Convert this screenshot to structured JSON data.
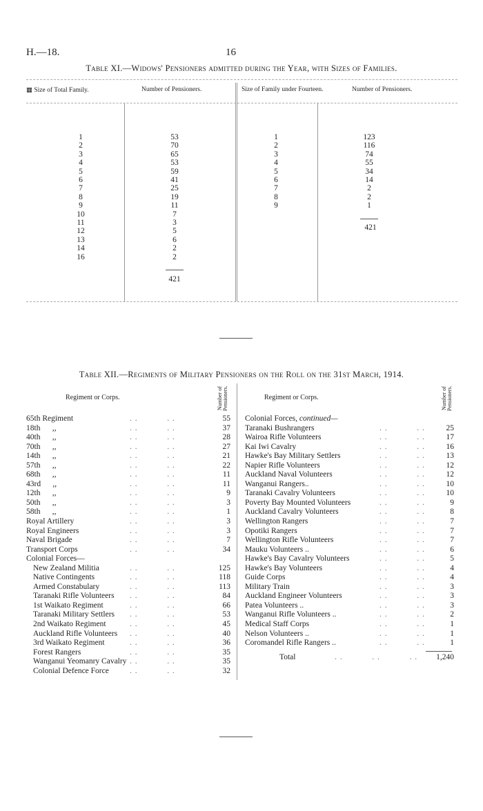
{
  "header": {
    "ref": "H.—18.",
    "page": "16"
  },
  "table11": {
    "title": "Table XI.—Widows' Pensioners admitted during the Year, with Sizes of Families.",
    "headers": [
      "Size of Total Family.",
      "Number of Pensioners.",
      "Size of Family under Fourteen.",
      "Number of Pensioners."
    ],
    "left": {
      "sizes": [
        "1",
        "2",
        "3",
        "4",
        "5",
        "6",
        "7",
        "8",
        "9",
        "10",
        "11",
        "12",
        "13",
        "14",
        "16"
      ],
      "counts": [
        "53",
        "70",
        "65",
        "53",
        "59",
        "41",
        "25",
        "19",
        "11",
        "7",
        "3",
        "5",
        "6",
        "2",
        "2"
      ],
      "total": "421"
    },
    "right": {
      "sizes": [
        "1",
        "2",
        "3",
        "4",
        "5",
        "6",
        "7",
        "8",
        "9"
      ],
      "counts": [
        "123",
        "116",
        "74",
        "55",
        "34",
        "14",
        "2",
        "2",
        "1"
      ],
      "total": "421"
    }
  },
  "table12": {
    "title": "Table XII.—Regiments of Military Pensioners on the Roll on the 31st March, 1914.",
    "col_regiment": "Regiment or Corps.",
    "col_number": "Number of Pensioners.",
    "left": [
      {
        "name": "65th Regiment",
        "value": "55"
      },
      {
        "name": "18th      ,,",
        "value": "37"
      },
      {
        "name": "40th      ,,",
        "value": "28"
      },
      {
        "name": "70th      ,,",
        "value": "27"
      },
      {
        "name": "14th      ,,",
        "value": "21"
      },
      {
        "name": "57th      ,,",
        "value": "22"
      },
      {
        "name": "68th      ,,",
        "value": "11"
      },
      {
        "name": "43rd      ,,",
        "value": "11"
      },
      {
        "name": "12th      ,,",
        "value": "9"
      },
      {
        "name": "50th      ,,",
        "value": "3"
      },
      {
        "name": "58th      ,,",
        "value": "1"
      },
      {
        "name": "Royal Artillery",
        "value": "3"
      },
      {
        "name": "Royal Engineers",
        "value": "3"
      },
      {
        "name": "Naval Brigade",
        "value": "7"
      },
      {
        "name": "Transport Corps",
        "value": "34"
      },
      {
        "name": "Colonial Forces—",
        "value": ""
      },
      {
        "name": "New Zealand Militia",
        "value": "125",
        "indent": true
      },
      {
        "name": "Native Contingents",
        "value": "118",
        "indent": true
      },
      {
        "name": "Armed Constabulary",
        "value": "113",
        "indent": true
      },
      {
        "name": "Taranaki Rifle Volunteers",
        "value": "84",
        "indent": true
      },
      {
        "name": "1st Waikato Regiment",
        "value": "66",
        "indent": true
      },
      {
        "name": "Taranaki Military Settlers",
        "value": "53",
        "indent": true
      },
      {
        "name": "2nd Waikato Regiment",
        "value": "45",
        "indent": true
      },
      {
        "name": "Auckland Rifle Volunteers",
        "value": "40",
        "indent": true
      },
      {
        "name": "3rd Waikato Regiment",
        "value": "36",
        "indent": true
      },
      {
        "name": "Forest Rangers",
        "value": "35",
        "indent": true
      },
      {
        "name": "Wanganui Yeomanry Cavalry",
        "value": "35",
        "indent": true
      },
      {
        "name": "Colonial Defence Force",
        "value": "32",
        "indent": true
      }
    ],
    "right_heading": "Colonial Forces,",
    "right_heading_italic": "continued—",
    "right": [
      {
        "name": "Taranaki Bushrangers",
        "value": "25"
      },
      {
        "name": "Wairoa Rifle Volunteers",
        "value": "17"
      },
      {
        "name": "Kai Iwi Cavalry",
        "value": "16"
      },
      {
        "name": "Hawke's Bay Military Settlers",
        "value": "13"
      },
      {
        "name": "Napier Rifle Volunteers",
        "value": "12"
      },
      {
        "name": "Auckland Naval Volunteers",
        "value": "12"
      },
      {
        "name": "Wanganui Rangers..",
        "value": "10"
      },
      {
        "name": "Taranaki Cavalry Volunteers",
        "value": "10"
      },
      {
        "name": "Poverty Bay Mounted Volunteers",
        "value": "9"
      },
      {
        "name": "Auckland Cavalry Volunteers",
        "value": "8"
      },
      {
        "name": "Wellington Rangers",
        "value": "7"
      },
      {
        "name": "Opotiki Rangers",
        "value": "7"
      },
      {
        "name": "Wellington Rifle Volunteers",
        "value": "7"
      },
      {
        "name": "Mauku Volunteers ..",
        "value": "6"
      },
      {
        "name": "Hawke's Bay Cavalry Volunteers",
        "value": "5"
      },
      {
        "name": "Hawke's Bay Volunteers",
        "value": "4"
      },
      {
        "name": "Guide Corps",
        "value": "4"
      },
      {
        "name": "Military Train",
        "value": "3"
      },
      {
        "name": "Auckland Engineer Volunteers",
        "value": "3"
      },
      {
        "name": "Patea Volunteers ..",
        "value": "3"
      },
      {
        "name": "Wanganui Rifle Volunteers ..",
        "value": "2"
      },
      {
        "name": "Medical Staff Corps",
        "value": "1"
      },
      {
        "name": "Nelson Volunteers ..",
        "value": "1"
      },
      {
        "name": "Coromandel Rifle Rangers ..",
        "value": "1"
      }
    ],
    "total_label": "Total",
    "total_value": "1,240"
  }
}
